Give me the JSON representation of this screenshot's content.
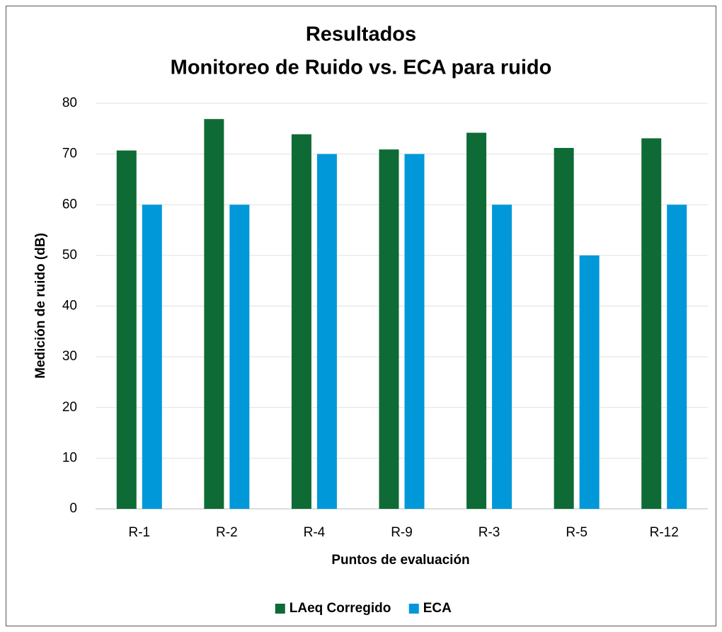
{
  "chart_data": {
    "type": "bar",
    "title": [
      "Resultados",
      "Monitoreo de Ruido vs. ECA para ruido"
    ],
    "x_label": "Puntos de evaluación",
    "y_label": "Medición de ruido (dB)",
    "categories": [
      "R-1",
      "R-2",
      "R-4",
      "R-9",
      "R-3",
      "R-5",
      "R-12"
    ],
    "series": [
      {
        "name": "LAeq Corregido",
        "color": "#0e6b35",
        "values": [
          70.7,
          76.9,
          73.9,
          70.9,
          74.2,
          71.2,
          73.1
        ]
      },
      {
        "name": "ECA",
        "color": "#0098d8",
        "values": [
          60,
          60,
          70,
          70,
          60,
          50,
          60
        ]
      }
    ],
    "ylim": [
      0,
      80
    ],
    "yticks": [
      0,
      10,
      20,
      30,
      40,
      50,
      60,
      70,
      80
    ],
    "grid": true,
    "legend": "bottom"
  }
}
